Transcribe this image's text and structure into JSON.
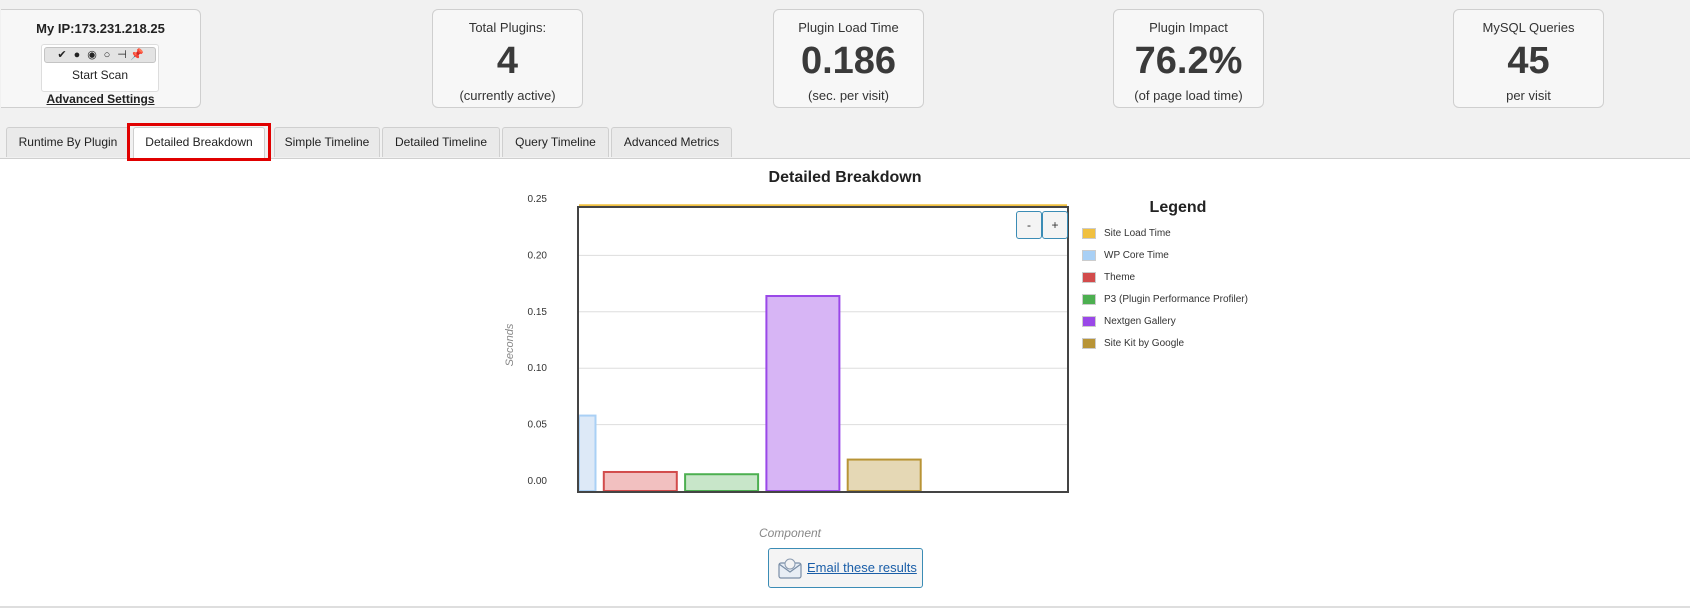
{
  "scanner": {
    "ip_label": "My IP:173.231.218.25",
    "toolbar_icons": [
      "checkmark-icon",
      "filled-circle-icon",
      "ring-icon",
      "hollow-circle-icon",
      "pin-left-icon",
      "pushpin-icon"
    ],
    "start_scan_label": "Start Scan",
    "advanced_settings_label": "Advanced Settings"
  },
  "stats": {
    "plugins": {
      "label": "Total Plugins:",
      "value": "4",
      "sub": "(currently active)"
    },
    "load_time": {
      "label": "Plugin Load Time",
      "value": "0.186",
      "sub": "(sec. per visit)"
    },
    "impact": {
      "label": "Plugin Impact",
      "value": "76.2%",
      "sub": "(of page load time)"
    },
    "mysql": {
      "label": "MySQL Queries",
      "value": "45",
      "sub": "per visit"
    }
  },
  "tabs": [
    {
      "label": "Runtime By Plugin",
      "active": false
    },
    {
      "label": "Detailed Breakdown",
      "active": true
    },
    {
      "label": "Simple Timeline",
      "active": false
    },
    {
      "label": "Detailed Timeline",
      "active": false
    },
    {
      "label": "Query Timeline",
      "active": false
    },
    {
      "label": "Advanced Metrics",
      "active": false
    }
  ],
  "zoom": {
    "out_label": "-",
    "in_label": "+"
  },
  "email": {
    "label": "Email these results",
    "icon": "envelope-icon"
  },
  "chart_data": {
    "type": "bar",
    "title": "Detailed Breakdown",
    "xlabel": "Component",
    "ylabel": "Seconds",
    "ylim": [
      0,
      0.25
    ],
    "yticks": [
      "0.25",
      "0.20",
      "0.15",
      "0.10",
      "0.05",
      "0.00"
    ],
    "grid": true,
    "legend_title": "Legend",
    "legend_position": "right",
    "reference_line": {
      "name": "Site Load Time",
      "value": 0.244,
      "color": "#f0c040"
    },
    "series": [
      {
        "name": "Site Load Time",
        "value": 0.244,
        "color": "#f0c040",
        "fill": "#f0c040"
      },
      {
        "name": "WP Core Time",
        "value": 0.058,
        "color": "#a9d0f5",
        "fill": "#dde9f7"
      },
      {
        "name": "Theme",
        "value": 0.008,
        "color": "#d24b4b",
        "fill": "#f2c0c0"
      },
      {
        "name": "P3 (Plugin Performance Profiler)",
        "value": 0.006,
        "color": "#4caf50",
        "fill": "#c8e6c9"
      },
      {
        "name": "Nextgen Gallery",
        "value": 0.164,
        "color": "#9a48e8",
        "fill": "#d7b5f5"
      },
      {
        "name": "Site Kit by Google",
        "value": 0.019,
        "color": "#b89436",
        "fill": "#e5d8b5"
      }
    ]
  }
}
